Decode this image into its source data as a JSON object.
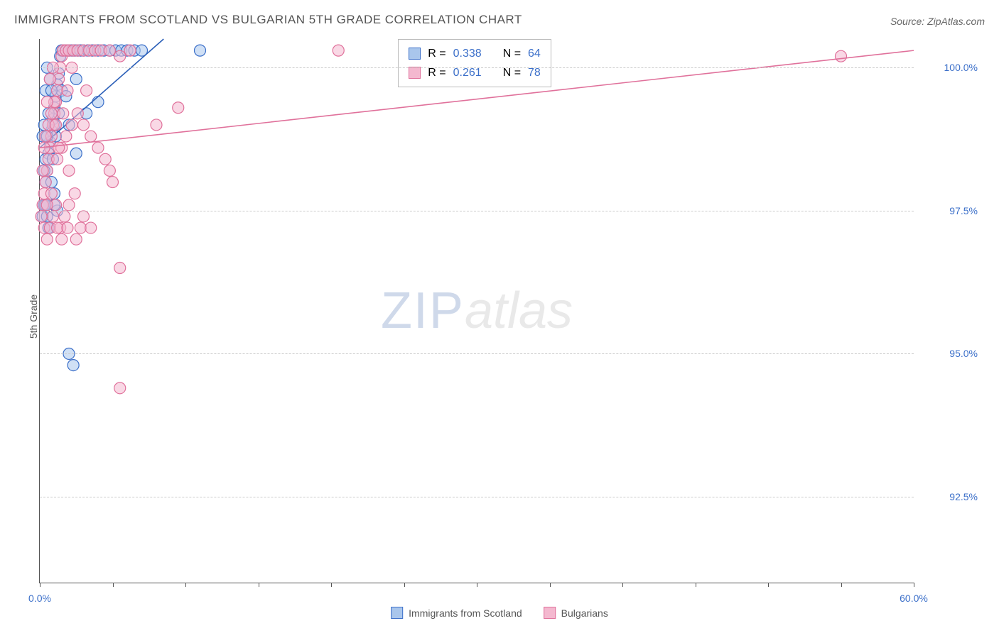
{
  "title": "IMMIGRANTS FROM SCOTLAND VS BULGARIAN 5TH GRADE CORRELATION CHART",
  "source_label": "Source: ZipAtlas.com",
  "watermark": {
    "part1": "ZIP",
    "part2": "atlas"
  },
  "ylabel": "5th Grade",
  "chart": {
    "type": "scatter",
    "xlim": [
      0,
      60
    ],
    "ylim": [
      91,
      100.5
    ],
    "xticks": [
      0,
      5,
      10,
      15,
      20,
      25,
      30,
      35,
      40,
      45,
      50,
      55,
      60
    ],
    "xtick_labels": {
      "0": "0.0%",
      "60": "60.0%"
    },
    "ygrid": [
      92.5,
      95.0,
      97.5,
      100.0
    ],
    "ytick_labels": [
      "92.5%",
      "95.0%",
      "97.5%",
      "100.0%"
    ],
    "grid_color": "#cccccc",
    "axis_color": "#555555",
    "tick_label_color": "#3b6fc9",
    "marker_radius": 8,
    "marker_stroke_width": 1.2,
    "line_width": 1.6,
    "series": [
      {
        "name": "Immigrants from Scotland",
        "fill": "#a9c6ec",
        "fill_opacity": 0.55,
        "stroke": "#3b6fc9",
        "line_color": "#2b5fb8",
        "trend": {
          "x1": 0,
          "y1": 98.6,
          "x2": 8.5,
          "y2": 100.5
        },
        "points": [
          [
            0.2,
            97.4
          ],
          [
            0.3,
            97.6
          ],
          [
            0.4,
            98.0
          ],
          [
            0.5,
            98.2
          ],
          [
            0.6,
            98.5
          ],
          [
            0.7,
            98.7
          ],
          [
            0.8,
            98.9
          ],
          [
            0.9,
            99.1
          ],
          [
            1.0,
            99.3
          ],
          [
            1.0,
            99.0
          ],
          [
            1.1,
            99.5
          ],
          [
            1.2,
            99.7
          ],
          [
            1.3,
            99.9
          ],
          [
            1.4,
            100.2
          ],
          [
            1.5,
            100.3
          ],
          [
            1.6,
            100.3
          ],
          [
            1.8,
            100.3
          ],
          [
            2.0,
            100.3
          ],
          [
            2.2,
            100.3
          ],
          [
            2.4,
            100.3
          ],
          [
            2.6,
            100.3
          ],
          [
            2.8,
            100.3
          ],
          [
            3.0,
            100.3
          ],
          [
            3.3,
            100.3
          ],
          [
            3.6,
            100.3
          ],
          [
            4.0,
            100.3
          ],
          [
            4.4,
            100.3
          ],
          [
            4.8,
            100.3
          ],
          [
            5.2,
            100.3
          ],
          [
            5.6,
            100.3
          ],
          [
            6.0,
            100.3
          ],
          [
            6.5,
            100.3
          ],
          [
            7.0,
            100.3
          ],
          [
            1.0,
            97.8
          ],
          [
            1.2,
            97.5
          ],
          [
            0.5,
            97.4
          ],
          [
            0.6,
            97.2
          ],
          [
            0.4,
            98.4
          ],
          [
            0.7,
            99.8
          ],
          [
            0.9,
            98.4
          ],
          [
            1.1,
            98.8
          ],
          [
            1.3,
            99.2
          ],
          [
            1.5,
            99.6
          ],
          [
            0.3,
            99.0
          ],
          [
            0.2,
            98.8
          ],
          [
            0.4,
            99.6
          ],
          [
            0.5,
            100.0
          ],
          [
            0.3,
            98.2
          ],
          [
            0.6,
            99.2
          ],
          [
            0.8,
            99.6
          ],
          [
            2.5,
            98.5
          ],
          [
            3.2,
            99.2
          ],
          [
            4.0,
            99.4
          ],
          [
            0.5,
            98.8
          ],
          [
            0.8,
            98.0
          ],
          [
            1.0,
            97.6
          ],
          [
            1.8,
            99.5
          ],
          [
            2.0,
            99.0
          ],
          [
            2.5,
            99.8
          ],
          [
            11.0,
            100.3
          ],
          [
            2.0,
            95.0
          ],
          [
            2.3,
            94.8
          ],
          [
            0.6,
            97.2
          ],
          [
            0.4,
            97.6
          ]
        ]
      },
      {
        "name": "Bulgarians",
        "fill": "#f4b8cf",
        "fill_opacity": 0.55,
        "stroke": "#e0719b",
        "line_color": "#e0719b",
        "trend": {
          "x1": 0,
          "y1": 98.6,
          "x2": 60,
          "y2": 100.3
        },
        "points": [
          [
            0.1,
            97.4
          ],
          [
            0.2,
            97.6
          ],
          [
            0.3,
            97.8
          ],
          [
            0.4,
            98.0
          ],
          [
            0.5,
            98.2
          ],
          [
            0.6,
            98.4
          ],
          [
            0.7,
            98.6
          ],
          [
            0.8,
            98.8
          ],
          [
            0.9,
            99.0
          ],
          [
            1.0,
            99.2
          ],
          [
            1.1,
            99.4
          ],
          [
            1.2,
            99.6
          ],
          [
            1.3,
            99.8
          ],
          [
            1.4,
            100.0
          ],
          [
            1.5,
            100.2
          ],
          [
            1.6,
            100.3
          ],
          [
            1.8,
            100.3
          ],
          [
            2.0,
            100.3
          ],
          [
            2.3,
            100.3
          ],
          [
            2.6,
            100.3
          ],
          [
            3.0,
            100.3
          ],
          [
            3.4,
            100.3
          ],
          [
            3.8,
            100.3
          ],
          [
            4.2,
            100.3
          ],
          [
            4.8,
            100.3
          ],
          [
            5.5,
            100.2
          ],
          [
            6.2,
            100.3
          ],
          [
            0.3,
            97.2
          ],
          [
            0.5,
            97.0
          ],
          [
            0.7,
            97.2
          ],
          [
            0.9,
            97.4
          ],
          [
            1.1,
            97.6
          ],
          [
            1.4,
            97.2
          ],
          [
            1.7,
            97.4
          ],
          [
            2.0,
            97.6
          ],
          [
            2.4,
            97.8
          ],
          [
            0.4,
            98.8
          ],
          [
            0.6,
            99.0
          ],
          [
            0.8,
            99.2
          ],
          [
            1.0,
            99.4
          ],
          [
            1.2,
            98.4
          ],
          [
            1.5,
            98.6
          ],
          [
            1.8,
            98.8
          ],
          [
            2.2,
            99.0
          ],
          [
            2.6,
            99.2
          ],
          [
            3.0,
            99.0
          ],
          [
            3.5,
            98.8
          ],
          [
            4.0,
            98.6
          ],
          [
            4.5,
            98.4
          ],
          [
            0.2,
            98.2
          ],
          [
            0.3,
            98.6
          ],
          [
            0.5,
            99.4
          ],
          [
            0.7,
            99.8
          ],
          [
            0.9,
            100.0
          ],
          [
            1.1,
            99.0
          ],
          [
            1.3,
            98.6
          ],
          [
            1.6,
            99.2
          ],
          [
            1.9,
            99.6
          ],
          [
            2.2,
            100.0
          ],
          [
            5.0,
            98.0
          ],
          [
            5.5,
            96.5
          ],
          [
            8.0,
            99.0
          ],
          [
            9.5,
            99.3
          ],
          [
            20.5,
            100.3
          ],
          [
            55.0,
            100.2
          ],
          [
            2.5,
            97.0
          ],
          [
            2.8,
            97.2
          ],
          [
            0.5,
            97.6
          ],
          [
            0.8,
            97.8
          ],
          [
            1.2,
            97.2
          ],
          [
            1.5,
            97.0
          ],
          [
            1.9,
            97.2
          ],
          [
            2.0,
            98.2
          ],
          [
            3.0,
            97.4
          ],
          [
            3.5,
            97.2
          ],
          [
            4.8,
            98.2
          ],
          [
            5.5,
            94.4
          ],
          [
            3.2,
            99.6
          ]
        ]
      }
    ]
  },
  "stats_box": {
    "rows": [
      {
        "swatch_fill": "#a9c6ec",
        "swatch_stroke": "#3b6fc9",
        "r_label": "R =",
        "r": "0.338",
        "n_label": "N =",
        "n": "64"
      },
      {
        "swatch_fill": "#f4b8cf",
        "swatch_stroke": "#e0719b",
        "r_label": "R =",
        "r": "0.261",
        "n_label": "N =",
        "n": "78"
      }
    ]
  },
  "bottom_legend": [
    {
      "swatch_fill": "#a9c6ec",
      "swatch_stroke": "#3b6fc9",
      "label": "Immigrants from Scotland"
    },
    {
      "swatch_fill": "#f4b8cf",
      "swatch_stroke": "#e0719b",
      "label": "Bulgarians"
    }
  ]
}
